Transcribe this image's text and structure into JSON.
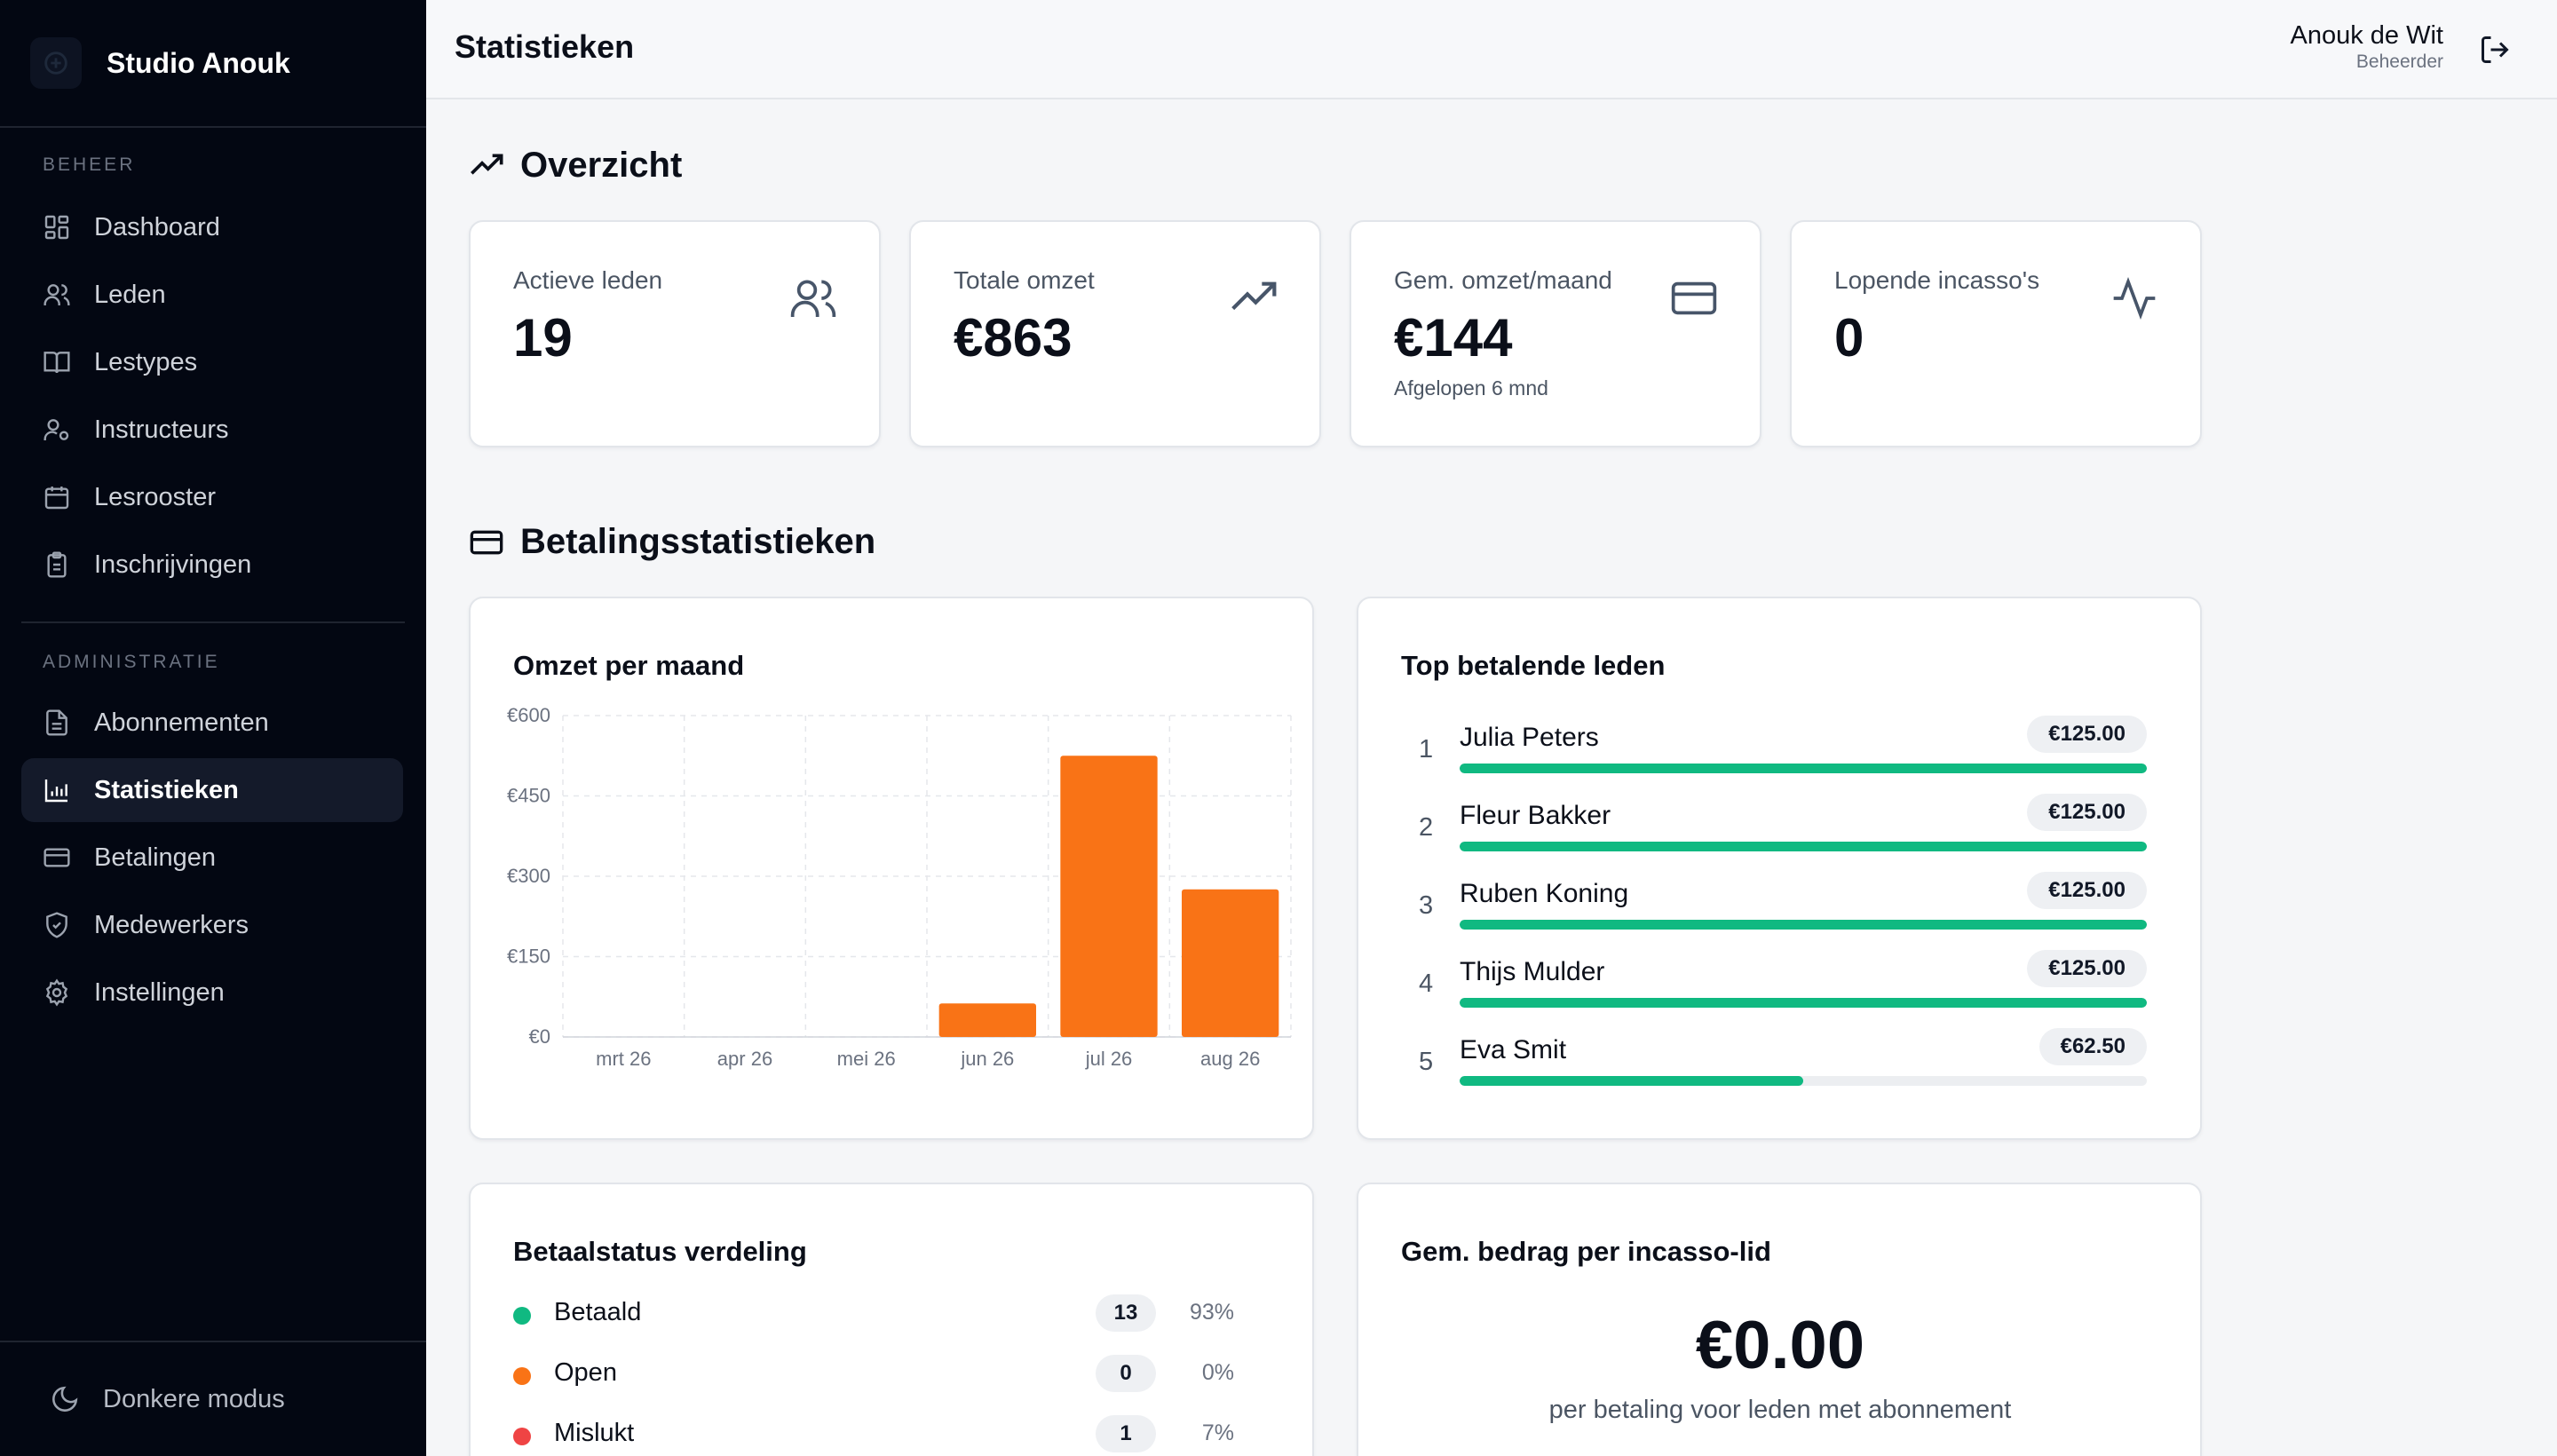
{
  "sidebar": {
    "brand": "Studio Anouk",
    "sections": [
      {
        "heading": "BEHEER",
        "items": [
          {
            "label": "Dashboard",
            "icon": "dashboard-icon"
          },
          {
            "label": "Leden",
            "icon": "users-icon"
          },
          {
            "label": "Lestypes",
            "icon": "book-icon"
          },
          {
            "label": "Instructeurs",
            "icon": "user-cog-icon"
          },
          {
            "label": "Lesrooster",
            "icon": "calendar-icon"
          },
          {
            "label": "Inschrijvingen",
            "icon": "clipboard-icon"
          }
        ]
      },
      {
        "heading": "ADMINISTRATIE",
        "items": [
          {
            "label": "Abonnementen",
            "icon": "file-icon"
          },
          {
            "label": "Statistieken",
            "icon": "bar-chart-icon",
            "active": true
          },
          {
            "label": "Betalingen",
            "icon": "credit-card-icon"
          },
          {
            "label": "Medewerkers",
            "icon": "shield-icon"
          },
          {
            "label": "Instellingen",
            "icon": "gear-icon"
          }
        ]
      }
    ],
    "footer_label": "Donkere modus"
  },
  "header": {
    "title": "Statistieken",
    "user_name": "Anouk de Wit",
    "user_role": "Beheerder"
  },
  "overview": {
    "title": "Overzicht",
    "cards": [
      {
        "label": "Actieve leden",
        "value": "19",
        "sub": "",
        "icon": "users-icon"
      },
      {
        "label": "Totale omzet",
        "value": "€863",
        "sub": "",
        "icon": "trending-up-icon"
      },
      {
        "label": "Gem. omzet/maand",
        "value": "€144",
        "sub": "Afgelopen 6 mnd",
        "icon": "credit-card-icon"
      },
      {
        "label": "Lopende incasso's",
        "value": "0",
        "sub": "",
        "icon": "activity-icon"
      }
    ]
  },
  "payments": {
    "title": "Betalingsstatistieken",
    "revenue_card_title": "Omzet per maand",
    "top_card_title": "Top betalende leden",
    "top_members": [
      {
        "rank": "1",
        "name": "Julia Peters",
        "amount": "€125.00",
        "share": 1.0
      },
      {
        "rank": "2",
        "name": "Fleur Bakker",
        "amount": "€125.00",
        "share": 1.0
      },
      {
        "rank": "3",
        "name": "Ruben Koning",
        "amount": "€125.00",
        "share": 1.0
      },
      {
        "rank": "4",
        "name": "Thijs Mulder",
        "amount": "€125.00",
        "share": 1.0
      },
      {
        "rank": "5",
        "name": "Eva Smit",
        "amount": "€62.50",
        "share": 0.5
      }
    ],
    "status_card_title": "Betaalstatus verdeling",
    "statuses": [
      {
        "name": "Betaald",
        "count": "13",
        "pct": "93%",
        "color": "#10b981"
      },
      {
        "name": "Open",
        "count": "0",
        "pct": "0%",
        "color": "#f97316"
      },
      {
        "name": "Mislukt",
        "count": "1",
        "pct": "7%",
        "color": "#ef4444"
      }
    ],
    "avg_card_title": "Gem. bedrag per incasso-lid",
    "avg_amount": "€0.00",
    "avg_sub": "per betaling voor leden met abonnement"
  },
  "chart_data": {
    "type": "bar",
    "title": "Omzet per maand",
    "categories": [
      "mrt 26",
      "apr 26",
      "mei 26",
      "jun 26",
      "jul 26",
      "aug 26"
    ],
    "values": [
      0,
      0,
      0,
      62.5,
      525,
      275.5
    ],
    "ylim": [
      0,
      600
    ],
    "yticks": [
      0,
      150,
      300,
      450,
      600
    ],
    "ytick_labels": [
      "€0",
      "€150",
      "€300",
      "€450",
      "€600"
    ],
    "grid": true,
    "color": "#f97316"
  }
}
